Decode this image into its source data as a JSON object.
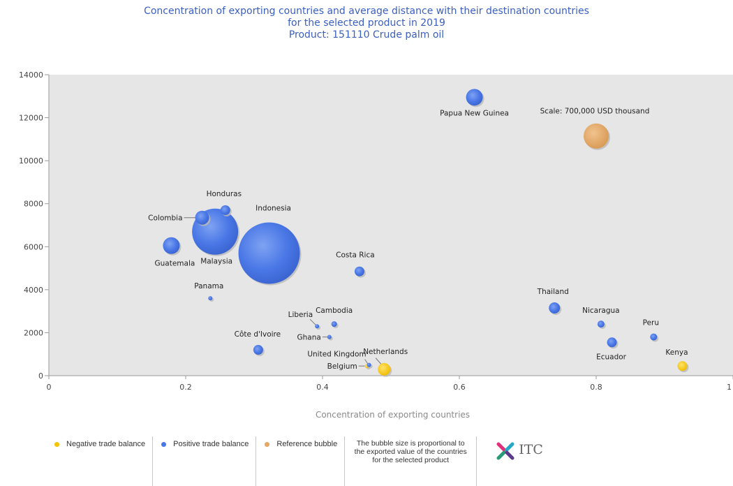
{
  "title_lines": [
    "Concentration of exporting countries and average distance with their destination countries",
    "for the selected product in 2019",
    "Product: 151110 Crude palm oil"
  ],
  "chart_data": {
    "type": "scatter",
    "title": "Concentration of exporting countries and average distance with their destination countries for the selected product in 2019",
    "xlabel": "Concentration of exporting countries",
    "ylabel": "",
    "xlim": [
      0,
      1
    ],
    "ylim": [
      0,
      14000
    ],
    "x_ticks": [
      0,
      0.2,
      0.4,
      0.6,
      0.8,
      1
    ],
    "x_tick_labels": [
      "0",
      "0.2",
      "0.4",
      "0.6",
      "0.8",
      "1"
    ],
    "y_ticks": [
      0,
      2000,
      4000,
      6000,
      8000,
      10000,
      12000,
      14000
    ],
    "y_tick_labels": [
      "0",
      "2000",
      "4000",
      "6000",
      "8000",
      "10000",
      "12000",
      "14000"
    ],
    "grid": false,
    "series": [
      {
        "name": "Negative trade balance",
        "color": "#f5c400",
        "points": [
          {
            "label": "Netherlands",
            "x": 0.49,
            "y": 300,
            "size": 1
          },
          {
            "label": "Belgium",
            "x": 0.465,
            "y": 450,
            "size": 1
          },
          {
            "label": "Kenya",
            "x": 0.926,
            "y": 450,
            "size": 1
          }
        ]
      },
      {
        "name": "Positive trade balance",
        "color": "#4a78e6",
        "points": [
          {
            "label": "Papua New Guinea",
            "x": 0.622,
            "y": 12950,
            "size": 1
          },
          {
            "label": "Honduras",
            "x": 0.258,
            "y": 7700,
            "size": 1
          },
          {
            "label": "Colombia",
            "x": 0.224,
            "y": 7350,
            "size": 1
          },
          {
            "label": "Indonesia",
            "x": 0.322,
            "y": 5700,
            "size": 1
          },
          {
            "label": "Malaysia",
            "x": 0.243,
            "y": 6700,
            "size": 1
          },
          {
            "label": "Guatemala",
            "x": 0.179,
            "y": 6050,
            "size": 1
          },
          {
            "label": "Costa Rica",
            "x": 0.454,
            "y": 4850,
            "size": 1
          },
          {
            "label": "Panama",
            "x": 0.236,
            "y": 3600,
            "size": 1
          },
          {
            "label": "Liberia",
            "x": 0.392,
            "y": 2300,
            "size": 1
          },
          {
            "label": "Cambodia",
            "x": 0.417,
            "y": 2400,
            "size": 1
          },
          {
            "label": "Ghana",
            "x": 0.41,
            "y": 1800,
            "size": 1
          },
          {
            "label": "Côte d'Ivoire",
            "x": 0.306,
            "y": 1200,
            "size": 1
          },
          {
            "label": "United Kingdom",
            "x": 0.468,
            "y": 500,
            "size": 1
          },
          {
            "label": "Thailand",
            "x": 0.739,
            "y": 3150,
            "size": 1
          },
          {
            "label": "Nicaragua",
            "x": 0.807,
            "y": 2400,
            "size": 1
          },
          {
            "label": "Ecuador",
            "x": 0.823,
            "y": 1550,
            "size": 1
          },
          {
            "label": "Peru",
            "x": 0.884,
            "y": 1800,
            "size": 1
          }
        ]
      },
      {
        "name": "Reference bubble",
        "color": "#e7a661",
        "points": [
          {
            "label": "Scale: 700,000 USD thousand",
            "x": 0.8,
            "y": 11150,
            "size": 1
          }
        ]
      }
    ]
  },
  "legend": {
    "negative": "Negative trade balance",
    "positive": "Positive trade balance",
    "reference": "Reference bubble",
    "note": "The bubble size is proportional to the exported value of the countries for the selected product",
    "negative_color": "#f5c400",
    "positive_color": "#4a78e6",
    "reference_color": "#e7a661"
  },
  "logo": {
    "text": "ITC"
  }
}
